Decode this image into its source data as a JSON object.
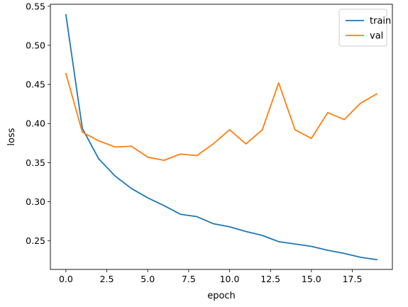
{
  "chart_data": {
    "type": "line",
    "title": "",
    "xlabel": "epoch",
    "ylabel": "loss",
    "xlim": [
      -0.95,
      19.95
    ],
    "ylim": [
      0.2135,
      0.5525
    ],
    "x_ticks": [
      0.0,
      2.5,
      5.0,
      7.5,
      10.0,
      12.5,
      15.0,
      17.5
    ],
    "x_tick_labels": [
      "0.0",
      "2.5",
      "5.0",
      "7.5",
      "10.0",
      "12.5",
      "15.0",
      "17.5"
    ],
    "y_ticks": [
      0.25,
      0.3,
      0.35,
      0.4,
      0.45,
      0.5,
      0.55
    ],
    "y_tick_labels": [
      "0.25",
      "0.30",
      "0.35",
      "0.40",
      "0.45",
      "0.50",
      "0.55"
    ],
    "grid": false,
    "legend_position": "top-right",
    "x": [
      0,
      1,
      2,
      3,
      4,
      5,
      6,
      7,
      8,
      9,
      10,
      11,
      12,
      13,
      14,
      15,
      16,
      17,
      18,
      19
    ],
    "series": [
      {
        "name": "train",
        "color": "#1f77b4",
        "values": [
          0.539,
          0.394,
          0.355,
          0.333,
          0.317,
          0.305,
          0.295,
          0.284,
          0.281,
          0.272,
          0.268,
          0.262,
          0.257,
          0.249,
          0.246,
          0.243,
          0.238,
          0.234,
          0.229,
          0.226
        ]
      },
      {
        "name": "val",
        "color": "#ff7f0e",
        "values": [
          0.464,
          0.389,
          0.378,
          0.37,
          0.371,
          0.357,
          0.353,
          0.361,
          0.359,
          0.374,
          0.392,
          0.374,
          0.392,
          0.452,
          0.392,
          0.381,
          0.414,
          0.405,
          0.426,
          0.438
        ]
      }
    ]
  }
}
